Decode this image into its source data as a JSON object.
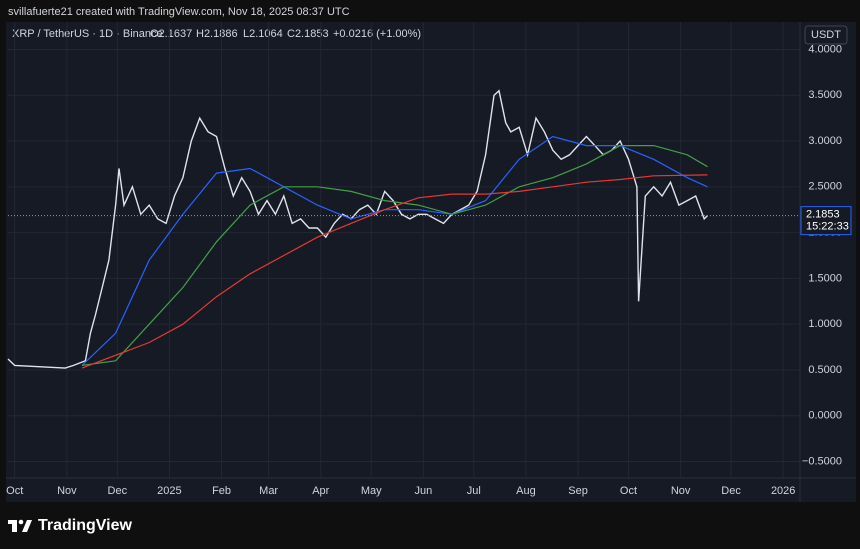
{
  "header": "svillafuerte21 created with TradingView.com, Nov 18, 2025 08:37 UTC",
  "brand": "TradingView",
  "chart_data": {
    "type": "line",
    "title": "XRP / TetherUS · 1D · Binance",
    "ohlc": [
      "O2.1637",
      "H2.1886",
      "L2.1064",
      "C2.1853",
      "+0.0216 (+1.00%)"
    ],
    "currency": "USDT",
    "last_price": 2.1853,
    "countdown": "15:22:33",
    "ylim": [
      -0.68,
      4.3
    ],
    "yticks": [
      {
        "value": -0.5,
        "label": "−0.5000"
      },
      {
        "value": 0,
        "label": "0.0000"
      },
      {
        "value": 0.5,
        "label": "0.5000"
      },
      {
        "value": 1,
        "label": "1.0000"
      },
      {
        "value": 1.5,
        "label": "1.5000"
      },
      {
        "value": 2,
        "label": "2.0000"
      },
      {
        "value": 2.5,
        "label": "2.5000"
      },
      {
        "value": 3,
        "label": "3.0000"
      },
      {
        "value": 3.5,
        "label": "3.5000"
      },
      {
        "value": 4,
        "label": "4.0000"
      }
    ],
    "xlim": [
      -4,
      467
    ],
    "xticks": [
      {
        "value": 0,
        "label": "Oct"
      },
      {
        "value": 31,
        "label": "Nov"
      },
      {
        "value": 61,
        "label": "Dec"
      },
      {
        "value": 92,
        "label": "2025"
      },
      {
        "value": 123,
        "label": "Feb"
      },
      {
        "value": 151,
        "label": "Mar"
      },
      {
        "value": 182,
        "label": "Apr"
      },
      {
        "value": 212,
        "label": "May"
      },
      {
        "value": 243,
        "label": "Jun"
      },
      {
        "value": 273,
        "label": "Jul"
      },
      {
        "value": 304,
        "label": "Aug"
      },
      {
        "value": 335,
        "label": "Sep"
      },
      {
        "value": 365,
        "label": "Oct"
      },
      {
        "value": 396,
        "label": "Nov"
      },
      {
        "value": 426,
        "label": "Dec"
      },
      {
        "value": 457,
        "label": "2026"
      }
    ],
    "grid": true,
    "series": [
      {
        "color": "#e0e3eb",
        "x": [
          -4,
          0,
          10,
          20,
          30,
          35,
          42,
          45,
          48,
          52,
          56,
          60,
          62,
          65,
          70,
          75,
          80,
          85,
          90,
          95,
          100,
          105,
          110,
          115,
          120,
          125,
          130,
          135,
          140,
          145,
          150,
          155,
          160,
          165,
          170,
          175,
          180,
          185,
          190,
          195,
          200,
          205,
          210,
          215,
          220,
          225,
          230,
          235,
          240,
          245,
          250,
          255,
          260,
          265,
          270,
          275,
          280,
          285,
          288,
          292,
          295,
          300,
          305,
          310,
          315,
          320,
          325,
          330,
          335,
          340,
          345,
          350,
          355,
          360,
          365,
          370,
          371,
          375,
          380,
          385,
          390,
          395,
          400,
          405,
          410,
          412
        ],
        "values": [
          0.62,
          0.55,
          0.54,
          0.53,
          0.52,
          0.55,
          0.6,
          0.9,
          1.1,
          1.4,
          1.7,
          2.3,
          2.7,
          2.3,
          2.5,
          2.2,
          2.3,
          2.15,
          2.1,
          2.4,
          2.6,
          3.0,
          3.25,
          3.1,
          3.05,
          2.7,
          2.4,
          2.6,
          2.45,
          2.2,
          2.35,
          2.2,
          2.4,
          2.1,
          2.15,
          2.05,
          2.05,
          1.95,
          2.1,
          2.2,
          2.15,
          2.25,
          2.3,
          2.2,
          2.45,
          2.35,
          2.2,
          2.15,
          2.2,
          2.2,
          2.15,
          2.1,
          2.2,
          2.25,
          2.3,
          2.45,
          2.85,
          3.5,
          3.55,
          3.2,
          3.1,
          3.15,
          2.85,
          3.25,
          3.1,
          2.9,
          2.8,
          2.85,
          2.95,
          3.05,
          2.95,
          2.85,
          2.9,
          3.0,
          2.8,
          2.5,
          1.25,
          2.4,
          2.5,
          2.4,
          2.55,
          2.3,
          2.35,
          2.4,
          2.15,
          2.1853
        ]
      },
      {
        "color": "#2962ff",
        "x": [
          40,
          60,
          80,
          100,
          120,
          140,
          160,
          180,
          200,
          220,
          240,
          260,
          280,
          300,
          320,
          340,
          360,
          380,
          400,
          412
        ],
        "values": [
          0.55,
          0.9,
          1.7,
          2.2,
          2.65,
          2.7,
          2.5,
          2.3,
          2.15,
          2.25,
          2.25,
          2.2,
          2.35,
          2.8,
          3.05,
          2.95,
          2.95,
          2.8,
          2.6,
          2.5
        ]
      },
      {
        "color": "#43a047",
        "x": [
          40,
          60,
          80,
          100,
          120,
          140,
          160,
          180,
          200,
          220,
          240,
          260,
          280,
          300,
          320,
          340,
          360,
          380,
          400,
          412
        ],
        "values": [
          0.55,
          0.6,
          1.0,
          1.4,
          1.9,
          2.3,
          2.5,
          2.5,
          2.45,
          2.35,
          2.3,
          2.2,
          2.3,
          2.5,
          2.6,
          2.75,
          2.95,
          2.95,
          2.85,
          2.72
        ]
      },
      {
        "color": "#e53935",
        "x": [
          40,
          80,
          100,
          120,
          140,
          160,
          180,
          200,
          220,
          240,
          260,
          280,
          300,
          320,
          340,
          360,
          380,
          412
        ],
        "values": [
          0.52,
          0.8,
          1.0,
          1.3,
          1.55,
          1.75,
          1.95,
          2.1,
          2.25,
          2.38,
          2.42,
          2.42,
          2.45,
          2.5,
          2.55,
          2.58,
          2.62,
          2.63
        ]
      }
    ]
  }
}
